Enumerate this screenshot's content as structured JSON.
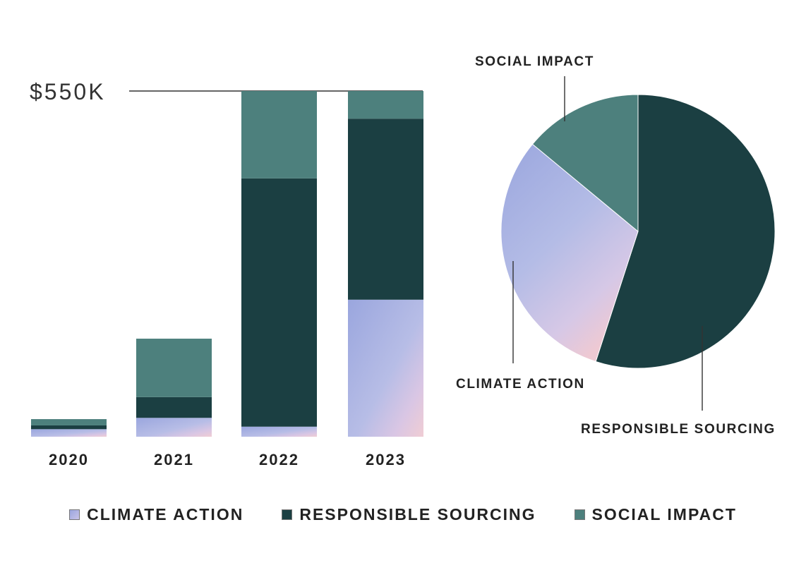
{
  "colors": {
    "climate_action": "#a9b2e2",
    "responsible_sourcing": "#1b3f42",
    "social_impact": "#4d807d",
    "leader": "#333333"
  },
  "chart_data": [
    {
      "type": "bar",
      "stacked": true,
      "title": "",
      "xlabel": "",
      "ylabel": "",
      "reference_line": {
        "value": 550,
        "label": "$550K"
      },
      "ylim": [
        0,
        560
      ],
      "unit": "$K",
      "categories": [
        "2020",
        "2021",
        "2022",
        "2023"
      ],
      "series": [
        {
          "name": "CLIMATE ACTION",
          "color_key": "climate_action",
          "values": [
            12,
            30,
            16,
            218
          ]
        },
        {
          "name": "RESPONSIBLE SOURCING",
          "color_key": "responsible_sourcing",
          "values": [
            6,
            33,
            395,
            288
          ]
        },
        {
          "name": "SOCIAL IMPACT",
          "color_key": "social_impact",
          "values": [
            10,
            93,
            139,
            44
          ]
        }
      ]
    },
    {
      "type": "pie",
      "title": "",
      "start": "12 o'clock, clockwise",
      "slices": [
        {
          "name": "RESPONSIBLE SOURCING",
          "value": 55,
          "color_key": "responsible_sourcing"
        },
        {
          "name": "CLIMATE ACTION",
          "value": 31,
          "color_key": "climate_action"
        },
        {
          "name": "SOCIAL IMPACT",
          "value": 14,
          "color_key": "social_impact"
        }
      ],
      "labels": {
        "social_impact": "SOCIAL IMPACT",
        "climate_action": "CLIMATE ACTION",
        "responsible_sourcing": "RESPONSIBLE SOURCING"
      }
    }
  ],
  "legend": [
    {
      "label": "CLIMATE ACTION",
      "color_key": "climate_action"
    },
    {
      "label": "RESPONSIBLE SOURCING",
      "color_key": "responsible_sourcing"
    },
    {
      "label": "SOCIAL IMPACT",
      "color_key": "social_impact"
    }
  ]
}
